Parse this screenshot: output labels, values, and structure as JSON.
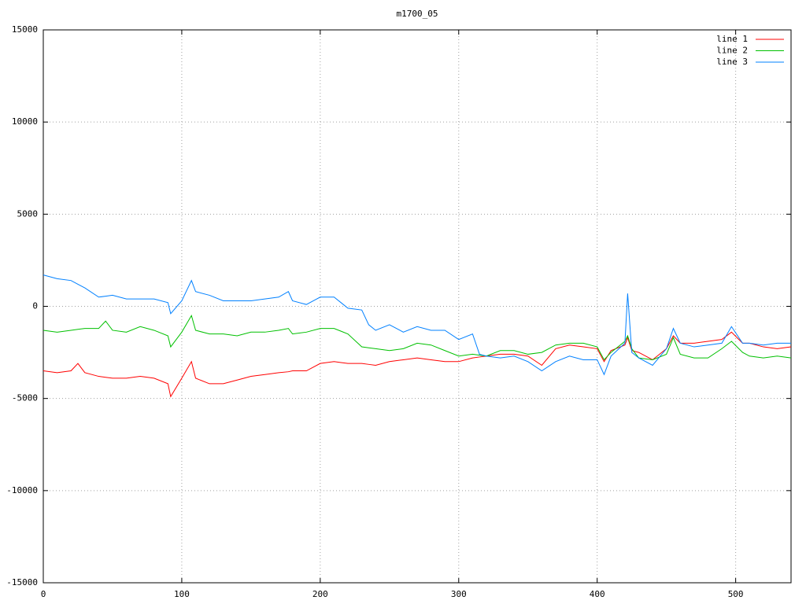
{
  "chart_data": {
    "type": "line",
    "title": "m1700_05",
    "x": [
      0,
      10,
      20,
      25,
      30,
      40,
      45,
      50,
      60,
      70,
      80,
      90,
      92,
      100,
      107,
      110,
      120,
      130,
      140,
      150,
      160,
      170,
      177,
      180,
      190,
      200,
      210,
      215,
      220,
      230,
      235,
      240,
      250,
      260,
      270,
      280,
      290,
      300,
      310,
      315,
      320,
      330,
      340,
      350,
      360,
      370,
      380,
      390,
      400,
      405,
      410,
      420,
      422,
      425,
      430,
      440,
      450,
      455,
      460,
      470,
      480,
      490,
      497,
      505,
      510,
      520,
      530,
      540
    ],
    "series": [
      {
        "name": "line 1",
        "color": "#ff0000",
        "values": [
          -3500,
          -3600,
          -3500,
          -3100,
          -3600,
          -3800,
          -3850,
          -3900,
          -3900,
          -3800,
          -3900,
          -4200,
          -4900,
          -3900,
          -3000,
          -3900,
          -4200,
          -4200,
          -4000,
          -3800,
          -3700,
          -3600,
          -3550,
          -3500,
          -3500,
          -3100,
          -3000,
          -3050,
          -3100,
          -3100,
          -3150,
          -3200,
          -3000,
          -2900,
          -2800,
          -2900,
          -3000,
          -3000,
          -2800,
          -2750,
          -2700,
          -2600,
          -2600,
          -2700,
          -3200,
          -2300,
          -2100,
          -2200,
          -2300,
          -3000,
          -2400,
          -2100,
          -1700,
          -2400,
          -2500,
          -2900,
          -2300,
          -1600,
          -2000,
          -2000,
          -1900,
          -1800,
          -1400,
          -2000,
          -2000,
          -2200,
          -2300,
          -2200
        ]
      },
      {
        "name": "line 2",
        "color": "#00c000",
        "values": [
          -1300,
          -1400,
          -1300,
          -1250,
          -1200,
          -1200,
          -800,
          -1300,
          -1400,
          -1100,
          -1300,
          -1600,
          -2200,
          -1400,
          -500,
          -1300,
          -1500,
          -1500,
          -1600,
          -1400,
          -1400,
          -1300,
          -1200,
          -1500,
          -1400,
          -1200,
          -1200,
          -1350,
          -1500,
          -2200,
          -2250,
          -2300,
          -2400,
          -2300,
          -2000,
          -2100,
          -2400,
          -2700,
          -2600,
          -2650,
          -2700,
          -2400,
          -2400,
          -2600,
          -2500,
          -2100,
          -2000,
          -2000,
          -2200,
          -2900,
          -2500,
          -1900,
          -1600,
          -2300,
          -2800,
          -2900,
          -2600,
          -1700,
          -2600,
          -2800,
          -2800,
          -2300,
          -1900,
          -2500,
          -2700,
          -2800,
          -2700,
          -2800
        ]
      },
      {
        "name": "line 3",
        "color": "#0080ff",
        "values": [
          1700,
          1500,
          1400,
          1200,
          1000,
          500,
          550,
          600,
          400,
          400,
          400,
          200,
          -400,
          300,
          1400,
          800,
          600,
          300,
          300,
          300,
          400,
          500,
          800,
          300,
          100,
          500,
          500,
          200,
          -100,
          -200,
          -1000,
          -1300,
          -1000,
          -1400,
          -1100,
          -1300,
          -1300,
          -1800,
          -1500,
          -2600,
          -2700,
          -2800,
          -2700,
          -3000,
          -3500,
          -3000,
          -2700,
          -2900,
          -2900,
          -3700,
          -2700,
          -2000,
          700,
          -2500,
          -2800,
          -3200,
          -2300,
          -1200,
          -2000,
          -2200,
          -2100,
          -2000,
          -1100,
          -2000,
          -2000,
          -2100,
          -2000,
          -2000
        ]
      }
    ],
    "xlim": [
      0,
      540
    ],
    "xticks": [
      0,
      100,
      200,
      300,
      400,
      500
    ],
    "ylim": [
      -15000,
      15000
    ],
    "yticks": [
      -15000,
      -10000,
      -5000,
      0,
      5000,
      10000,
      15000
    ],
    "grid": true,
    "legend": "top-right"
  }
}
